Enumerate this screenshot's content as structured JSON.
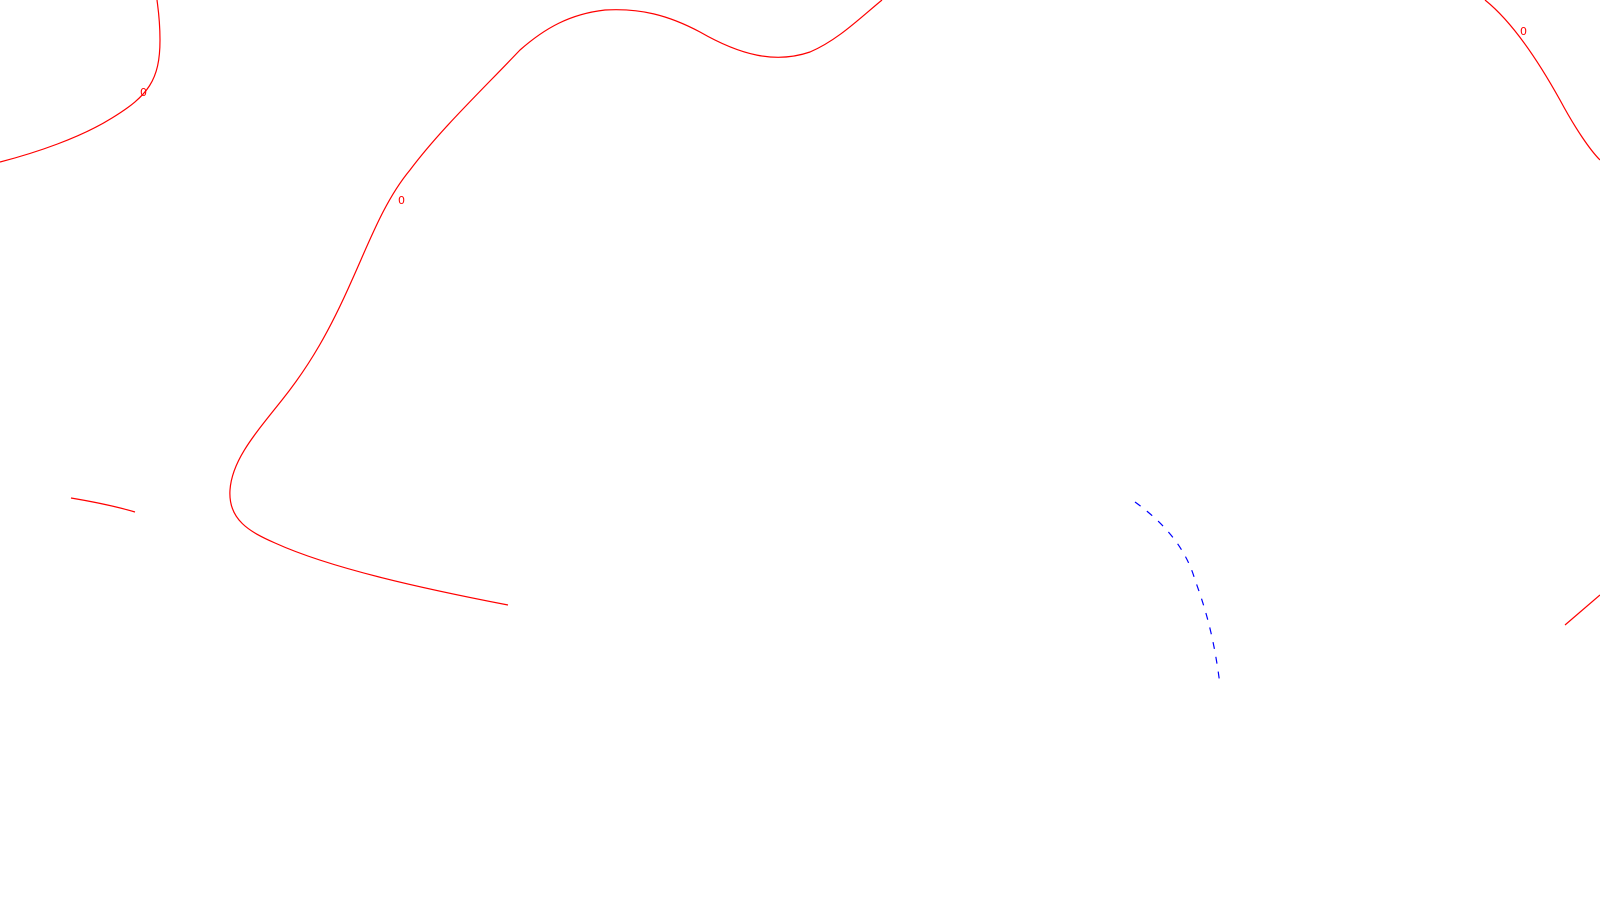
{
  "map": {
    "colors": {
      "background": "#ffffff",
      "contour_zero": "#ff0000",
      "contour_negative": "#0000ff"
    },
    "contour_labels": {
      "label_1": "0",
      "label_2": "0",
      "label_3": "0"
    }
  }
}
